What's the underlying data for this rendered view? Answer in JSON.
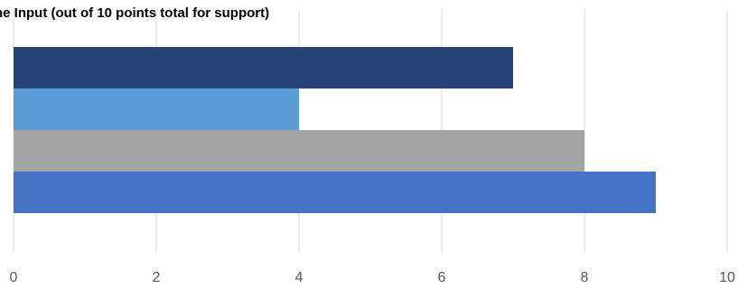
{
  "chart_data": {
    "type": "bar",
    "orientation": "horizontal",
    "title": "ne Input (out of 10 points total for support)",
    "xlabel": "",
    "ylabel": "",
    "xlim": [
      0,
      10
    ],
    "x_ticks": [
      "0",
      "2",
      "4",
      "6",
      "8",
      "10"
    ],
    "grid": true,
    "legend": "none",
    "series": [
      {
        "values": [
          7
        ],
        "color": "#264478"
      },
      {
        "values": [
          4
        ],
        "color": "#5B9BD5"
      },
      {
        "values": [
          8
        ],
        "color": "#A5A5A5"
      },
      {
        "values": [
          9
        ],
        "color": "#4472C4"
      }
    ],
    "gridline_color": "#D9D9D9"
  }
}
